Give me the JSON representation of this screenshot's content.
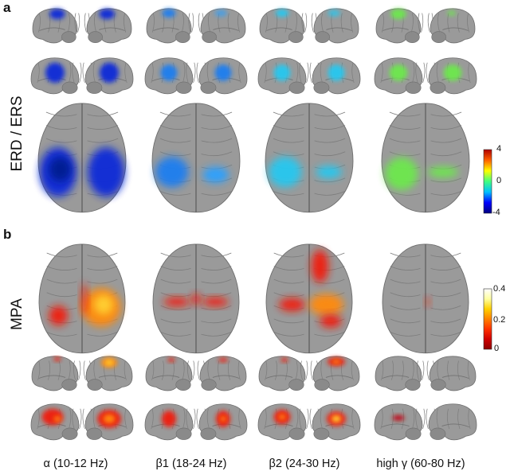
{
  "panel_a": {
    "letter": "a",
    "row_label": "ERD / ERS",
    "colorbar": {
      "max": "4",
      "mid": "0",
      "min": "-4",
      "stops": [
        "#00007f",
        "#0000ff",
        "#00c0ff",
        "#40ff80",
        "#ffff00",
        "#ff6000",
        "#b00000"
      ]
    }
  },
  "panel_b": {
    "letter": "b",
    "row_label": "MPA",
    "colorbar": {
      "max": "0.4",
      "mid": "0.2",
      "min": "0",
      "stops": [
        "#8b0000",
        "#d00000",
        "#ff3000",
        "#ff8000",
        "#ffd000",
        "#ffffa0",
        "#ffffff"
      ]
    }
  },
  "bands": [
    "α (10-12 Hz)",
    "β1 (18-24 Hz)",
    "β2 (24-30 Hz)",
    "high γ (60-80 Hz)"
  ],
  "colors": {
    "brain": "#9a9a9a",
    "brain_edge": "#6e6e6e",
    "erd_alpha": "#0a2cd8",
    "erd_beta1": "#1c7ef0",
    "erd_beta2": "#27c8f0",
    "erd_gamma": "#6de84e",
    "mpa_red": "#f01a0a",
    "mpa_orange": "#ff8a10",
    "mpa_yellow": "#ffd030"
  }
}
